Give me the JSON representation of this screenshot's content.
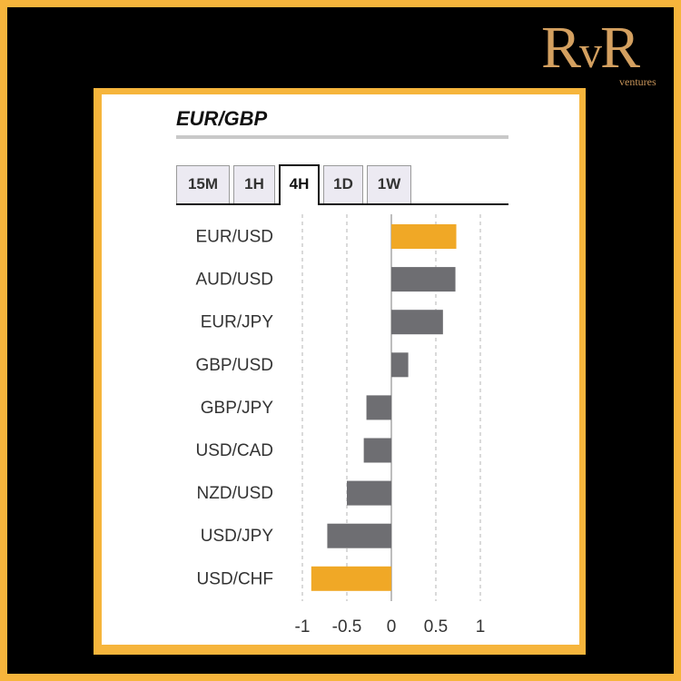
{
  "logo": {
    "main_left": "R",
    "main_mid": "v",
    "main_right": "R",
    "sub": "ventures"
  },
  "title": "EUR/GBP",
  "tabs": [
    {
      "label": "15M",
      "active": false
    },
    {
      "label": "1H",
      "active": false
    },
    {
      "label": "4H",
      "active": true
    },
    {
      "label": "1D",
      "active": false
    },
    {
      "label": "1W",
      "active": false
    }
  ],
  "colors": {
    "highlight": "#f0a826",
    "neutral": "#6e6e72",
    "background_border": "#f6b53c"
  },
  "chart_data": {
    "type": "bar",
    "orientation": "horizontal",
    "categories": [
      "EUR/USD",
      "AUD/USD",
      "EUR/JPY",
      "GBP/USD",
      "GBP/JPY",
      "USD/CAD",
      "NZD/USD",
      "USD/JPY",
      "USD/CHF"
    ],
    "values": [
      0.73,
      0.72,
      0.58,
      0.19,
      -0.28,
      -0.31,
      -0.5,
      -0.72,
      -0.9
    ],
    "highlighted": [
      "EUR/USD",
      "USD/CHF"
    ],
    "xlim": [
      -1,
      1
    ],
    "xticks": [
      -1,
      -0.5,
      0,
      0.5,
      1
    ],
    "xtick_labels": [
      "-1",
      "-0.5",
      "0",
      "0.5",
      "1"
    ],
    "grid": "vertical-dashed"
  }
}
